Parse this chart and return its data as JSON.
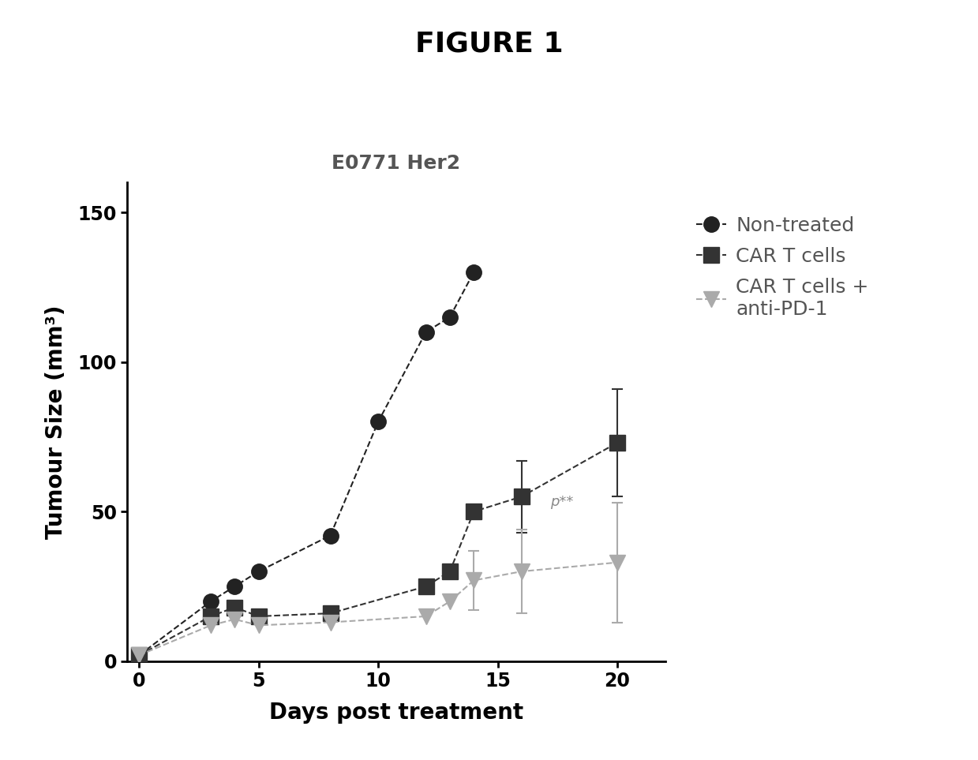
{
  "title": "FIGURE 1",
  "subplot_title": "E0771 Her2",
  "xlabel": "Days post treatment",
  "ylabel": "Tumour Size (mm³)",
  "xlim": [
    -0.5,
    22
  ],
  "ylim": [
    0,
    160
  ],
  "yticks": [
    0,
    50,
    100,
    150
  ],
  "xticks": [
    0,
    5,
    10,
    15,
    20
  ],
  "series": [
    {
      "label": "Non-treated",
      "x": [
        0,
        3,
        4,
        5,
        8,
        10,
        12,
        13,
        14
      ],
      "y": [
        2,
        20,
        25,
        30,
        42,
        80,
        110,
        115,
        130
      ],
      "yerr": [
        null,
        null,
        null,
        null,
        null,
        null,
        null,
        null,
        null
      ],
      "color": "#222222",
      "marker": "o",
      "markersize": 14,
      "linewidth": 1.5,
      "linestyle": "--"
    },
    {
      "label": "CAR T cells",
      "x": [
        0,
        3,
        4,
        5,
        8,
        12,
        13,
        14,
        16,
        20
      ],
      "y": [
        2,
        15,
        18,
        15,
        16,
        25,
        30,
        50,
        55,
        73
      ],
      "yerr": [
        null,
        null,
        null,
        null,
        null,
        null,
        null,
        null,
        12,
        18
      ],
      "color": "#333333",
      "marker": "s",
      "markersize": 14,
      "linewidth": 1.5,
      "linestyle": "--"
    },
    {
      "label": "CAR T cells +\nanti-PD-1",
      "x": [
        0,
        3,
        4,
        5,
        8,
        12,
        13,
        14,
        16,
        20
      ],
      "y": [
        2,
        12,
        14,
        12,
        13,
        15,
        20,
        27,
        30,
        33
      ],
      "yerr": [
        null,
        null,
        null,
        null,
        null,
        null,
        null,
        10,
        14,
        20
      ],
      "color": "#aaaaaa",
      "marker": "v",
      "markersize": 14,
      "linewidth": 1.5,
      "linestyle": "--"
    }
  ],
  "pvalue_x": 17.2,
  "pvalue_y": 52,
  "pvalue_text": "p**",
  "background_color": "#ffffff",
  "title_fontsize": 26,
  "title_fontweight": "bold",
  "subplot_title_fontsize": 18,
  "axis_label_fontsize": 20,
  "tick_fontsize": 17,
  "legend_fontsize": 18
}
